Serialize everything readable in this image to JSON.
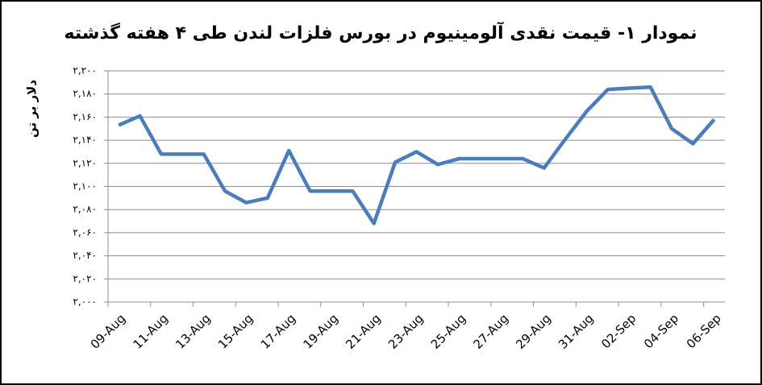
{
  "chart_data": {
    "type": "line",
    "title": "نمودار ۱- قیمت نقدی آلومینیوم در بورس فلزات لندن طی ۴ هفته گذشته",
    "y_label": "دلار بر تن",
    "categories": [
      "09-Aug",
      null,
      "11-Aug",
      null,
      "13-Aug",
      null,
      "15-Aug",
      null,
      "17-Aug",
      null,
      "19-Aug",
      null,
      "21-Aug",
      null,
      "23-Aug",
      null,
      "25-Aug",
      null,
      "27-Aug",
      null,
      "29-Aug",
      null,
      "31-Aug",
      null,
      "02-Sep",
      null,
      "04-Sep",
      null,
      "06-Sep"
    ],
    "series": [
      {
        "color": "#4a7ebb",
        "values": [
          2153,
          2161,
          2128,
          2128,
          2128,
          2096,
          2086,
          2090,
          2131,
          2096,
          2096,
          2096,
          2068,
          2121,
          2130,
          2119,
          2124,
          2124,
          2124,
          2124,
          2116,
          2141,
          2165,
          2184,
          2185,
          2186,
          2150,
          2137,
          2158
        ]
      }
    ],
    "ylim": [
      2000,
      2200
    ],
    "yticks": [
      {
        "value": 2000,
        "label": "۲,۰۰۰"
      },
      {
        "value": 2020,
        "label": "۲,۰۲۰"
      },
      {
        "value": 2040,
        "label": "۲,۰۴۰"
      },
      {
        "value": 2060,
        "label": "۲,۰۶۰"
      },
      {
        "value": 2080,
        "label": "۲,۰۸۰"
      },
      {
        "value": 2100,
        "label": "۲,۱۰۰"
      },
      {
        "value": 2120,
        "label": "۲,۱۲۰"
      },
      {
        "value": 2140,
        "label": "۲,۱۴۰"
      },
      {
        "value": 2160,
        "label": "۲,۱۶۰"
      },
      {
        "value": 2180,
        "label": "۲,۱۸۰"
      },
      {
        "value": 2200,
        "label": "۲,۲۰۰"
      }
    ],
    "grid": true
  }
}
